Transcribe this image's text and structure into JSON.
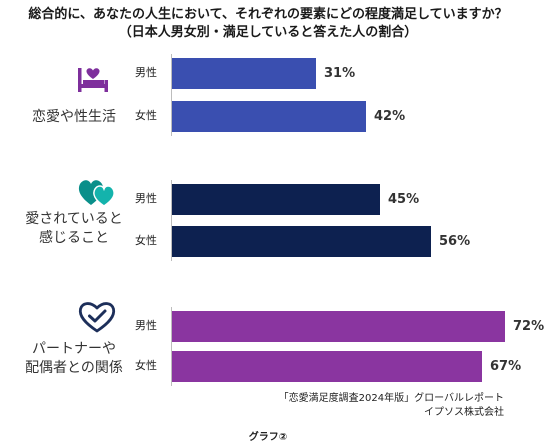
{
  "title_line1": "総合的に、あなたの人生において、それぞれの要素にどの程度満足していますか？",
  "title_line2": "（日本人男女別・満足していると答えた人の割合）",
  "chart_data": {
    "type": "bar",
    "orientation": "horizontal",
    "value_suffix": "%",
    "xlim": [
      0,
      100
    ],
    "grid": false,
    "groups": [
      {
        "label_lines": [
          "恋愛や性生活"
        ],
        "icon": "heart-bed-icon",
        "color": "#3a4fb0",
        "series": [
          {
            "name": "男性",
            "value": 31,
            "label": "31%"
          },
          {
            "name": "女性",
            "value": 42,
            "label": "42%"
          }
        ]
      },
      {
        "label_lines": [
          "愛されていると",
          "感じること"
        ],
        "icon": "two-hearts-icon",
        "color": "#0d2150",
        "series": [
          {
            "name": "男性",
            "value": 45,
            "label": "45%"
          },
          {
            "name": "女性",
            "value": 56,
            "label": "56%"
          }
        ]
      },
      {
        "label_lines": [
          "パートナーや",
          "配偶者との関係"
        ],
        "icon": "heart-check-icon",
        "color": "#8a35a0",
        "series": [
          {
            "name": "男性",
            "value": 72,
            "label": "72%"
          },
          {
            "name": "女性",
            "value": 67,
            "label": "67%"
          }
        ]
      }
    ]
  },
  "source_line1": "「恋愛満足度調査2024年版」グローバルレポート",
  "source_line2": "イプソス株式会社",
  "caption": "グラフ②"
}
